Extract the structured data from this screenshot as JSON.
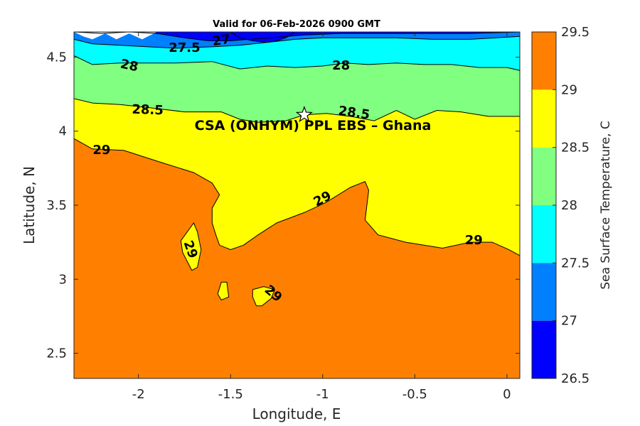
{
  "chart_data": {
    "type": "contourf",
    "title": "Valid for 06-Feb-2026 0900 GMT",
    "xlabel": "Longitude, E",
    "ylabel": "Latitude, N",
    "xlim": [
      -2.35,
      0.07
    ],
    "ylim": [
      2.33,
      4.67
    ],
    "xticks": [
      -2,
      -1.5,
      -1,
      -0.5,
      0
    ],
    "xtick_labels": [
      "-2",
      "-1.5",
      "-1",
      "-0.5",
      "0"
    ],
    "yticks": [
      2.5,
      3,
      3.5,
      4,
      4.5
    ],
    "ytick_labels": [
      "2.5",
      "3",
      "3.5",
      "4",
      "4.5"
    ],
    "colorbar": {
      "label": "Sea Surface Temperature, C",
      "levels": [
        26.5,
        27,
        27.5,
        28,
        28.5,
        29,
        29.5
      ],
      "tick_labels": [
        "26.5",
        "27",
        "27.5",
        "28",
        "28.5",
        "29",
        "29.5"
      ],
      "colors": [
        "#0000ff",
        "#0080ff",
        "#00ffff",
        "#80ff80",
        "#ffff00",
        "#ff8000"
      ]
    },
    "site": {
      "label": "CSA (ONHYM) PPL EBS  – Ghana",
      "lon": -1.1,
      "lat": 4.11
    },
    "contour_labels": [
      {
        "text": "27",
        "lon": -1.55,
        "lat": 4.61,
        "angle": -8
      },
      {
        "text": "27.5",
        "lon": -1.75,
        "lat": 4.56,
        "angle": 0
      },
      {
        "text": "28",
        "lon": -2.05,
        "lat": 4.44,
        "angle": 12
      },
      {
        "text": "28",
        "lon": -0.9,
        "lat": 4.44,
        "angle": 0
      },
      {
        "text": "28.5",
        "lon": -1.95,
        "lat": 4.14,
        "angle": 2
      },
      {
        "text": "28.5",
        "lon": -0.83,
        "lat": 4.12,
        "angle": 8
      },
      {
        "text": "29",
        "lon": -2.2,
        "lat": 3.87,
        "angle": 0
      },
      {
        "text": "29",
        "lon": -1.0,
        "lat": 3.54,
        "angle": -28
      },
      {
        "text": "29",
        "lon": -1.72,
        "lat": 3.2,
        "angle": 70
      },
      {
        "text": "29",
        "lon": -1.27,
        "lat": 2.9,
        "angle": 40
      },
      {
        "text": "29",
        "lon": -0.18,
        "lat": 3.26,
        "angle": 0
      }
    ],
    "regions": [
      {
        "level": 29,
        "color": "#ff8000",
        "polygon": [
          [
            -2.35,
            3.95
          ],
          [
            -2.25,
            3.88
          ],
          [
            -2.08,
            3.87
          ],
          [
            -1.88,
            3.79
          ],
          [
            -1.7,
            3.72
          ],
          [
            -1.6,
            3.65
          ],
          [
            -1.56,
            3.57
          ],
          [
            -1.6,
            3.48
          ],
          [
            -1.6,
            3.38
          ],
          [
            -1.58,
            3.3
          ],
          [
            -1.56,
            3.23
          ],
          [
            -1.5,
            3.2
          ],
          [
            -1.43,
            3.23
          ],
          [
            -1.35,
            3.3
          ],
          [
            -1.25,
            3.38
          ],
          [
            -1.1,
            3.45
          ],
          [
            -0.98,
            3.52
          ],
          [
            -0.85,
            3.62
          ],
          [
            -0.77,
            3.66
          ],
          [
            -0.75,
            3.6
          ],
          [
            -0.77,
            3.4
          ],
          [
            -0.7,
            3.3
          ],
          [
            -0.55,
            3.25
          ],
          [
            -0.35,
            3.21
          ],
          [
            -0.2,
            3.25
          ],
          [
            -0.08,
            3.25
          ],
          [
            0.01,
            3.2
          ],
          [
            0.07,
            3.16
          ],
          [
            0.07,
            2.33
          ],
          [
            -2.35,
            2.33
          ]
        ]
      },
      {
        "level": 28.5,
        "color": "#ffff00",
        "polygon": [
          [
            -1.77,
            3.26
          ],
          [
            -1.7,
            3.38
          ],
          [
            -1.68,
            3.32
          ],
          [
            -1.66,
            3.2
          ],
          [
            -1.68,
            3.08
          ],
          [
            -1.71,
            3.06
          ],
          [
            -1.76,
            3.18
          ]
        ]
      },
      {
        "level": 28.5,
        "color": "#ffff00",
        "polygon": [
          [
            -1.55,
            2.98
          ],
          [
            -1.52,
            2.98
          ],
          [
            -1.51,
            2.88
          ],
          [
            -1.55,
            2.86
          ],
          [
            -1.57,
            2.9
          ]
        ]
      },
      {
        "level": 28.5,
        "color": "#ffff00",
        "polygon": [
          [
            -1.38,
            2.93
          ],
          [
            -1.32,
            2.95
          ],
          [
            -1.26,
            2.93
          ],
          [
            -1.28,
            2.87
          ],
          [
            -1.33,
            2.82
          ],
          [
            -1.36,
            2.82
          ],
          [
            -1.38,
            2.88
          ]
        ]
      }
    ],
    "contours": [
      {
        "level": 28.5,
        "color": "#ffff00",
        "points": [
          [
            -2.35,
            4.22
          ],
          [
            -2.25,
            4.19
          ],
          [
            -2.1,
            4.18
          ],
          [
            -1.95,
            4.16
          ],
          [
            -1.75,
            4.13
          ],
          [
            -1.55,
            4.13
          ],
          [
            -1.45,
            4.08
          ],
          [
            -1.35,
            4.06
          ],
          [
            -1.2,
            4.07
          ],
          [
            -1.1,
            4.11
          ],
          [
            -0.98,
            4.12
          ],
          [
            -0.85,
            4.1
          ],
          [
            -0.72,
            4.07
          ],
          [
            -0.6,
            4.14
          ],
          [
            -0.5,
            4.08
          ],
          [
            -0.38,
            4.14
          ],
          [
            -0.25,
            4.13
          ],
          [
            -0.1,
            4.1
          ],
          [
            0.07,
            4.1
          ]
        ]
      },
      {
        "level": 28,
        "color": "#80ff80",
        "points": [
          [
            -2.35,
            4.51
          ],
          [
            -2.25,
            4.45
          ],
          [
            -2.1,
            4.46
          ],
          [
            -1.95,
            4.46
          ],
          [
            -1.8,
            4.46
          ],
          [
            -1.6,
            4.47
          ],
          [
            -1.45,
            4.42
          ],
          [
            -1.3,
            4.44
          ],
          [
            -1.15,
            4.43
          ],
          [
            -1.0,
            4.44
          ],
          [
            -0.88,
            4.46
          ],
          [
            -0.75,
            4.45
          ],
          [
            -0.6,
            4.46
          ],
          [
            -0.45,
            4.45
          ],
          [
            -0.3,
            4.45
          ],
          [
            -0.15,
            4.43
          ],
          [
            0.0,
            4.43
          ],
          [
            0.07,
            4.41
          ]
        ]
      },
      {
        "level": 27.5,
        "color": "#00ffff",
        "points": [
          [
            -2.35,
            4.62
          ],
          [
            -2.25,
            4.59
          ],
          [
            -2.1,
            4.58
          ],
          [
            -1.95,
            4.57
          ],
          [
            -1.8,
            4.56
          ],
          [
            -1.6,
            4.57
          ],
          [
            -1.45,
            4.58
          ],
          [
            -1.3,
            4.6
          ],
          [
            -1.15,
            4.62
          ],
          [
            -1.0,
            4.63
          ],
          [
            -0.8,
            4.63
          ],
          [
            -0.6,
            4.63
          ],
          [
            -0.4,
            4.62
          ],
          [
            -0.2,
            4.62
          ],
          [
            0.07,
            4.64
          ]
        ]
      },
      {
        "level": 27,
        "color": "#0080ff",
        "points": [
          [
            -2.35,
            4.67
          ],
          [
            -2.2,
            4.66
          ],
          [
            -2.05,
            4.67
          ],
          [
            -1.9,
            4.66
          ],
          [
            -1.75,
            4.63
          ],
          [
            -1.62,
            4.61
          ],
          [
            -1.5,
            4.61
          ],
          [
            -1.4,
            4.62
          ],
          [
            -1.28,
            4.63
          ],
          [
            -1.1,
            4.65
          ],
          [
            -0.9,
            4.66
          ],
          [
            -0.7,
            4.66
          ],
          [
            -0.4,
            4.66
          ],
          [
            -0.2,
            4.66
          ],
          [
            0.07,
            4.67
          ]
        ]
      },
      {
        "level": 26.5,
        "color": "#0000ff",
        "points": [
          [
            -1.5,
            4.67
          ],
          [
            -1.45,
            4.63
          ],
          [
            -1.38,
            4.61
          ],
          [
            -1.3,
            4.6
          ],
          [
            -1.25,
            4.61
          ],
          [
            -1.2,
            4.63
          ],
          [
            -1.15,
            4.67
          ]
        ]
      }
    ],
    "blank_region": [
      [
        -2.35,
        4.67
      ],
      [
        -2.3,
        4.64
      ],
      [
        -2.25,
        4.62
      ],
      [
        -2.18,
        4.66
      ],
      [
        -2.12,
        4.62
      ],
      [
        -2.05,
        4.66
      ],
      [
        -1.98,
        4.62
      ],
      [
        -1.9,
        4.67
      ]
    ]
  }
}
